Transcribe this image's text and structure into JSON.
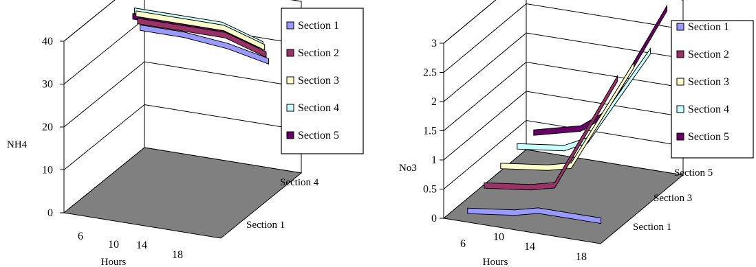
{
  "chart_data": [
    {
      "type": "line3d",
      "ylabel": "NH4",
      "xlabel": "Hours",
      "yticks": [
        "0",
        "10",
        "20",
        "30",
        "40"
      ],
      "ylim": [
        0,
        40
      ],
      "xticks": [
        "6",
        "10",
        "14",
        "18"
      ],
      "zticks": [
        "Section 1",
        "Section 4"
      ],
      "grid": true,
      "legend_position": "right",
      "x": [
        6,
        10,
        14,
        18
      ],
      "series": [
        {
          "name": "Section 1",
          "color": "#9999ff",
          "values": [
            33,
            33,
            32,
            30
          ]
        },
        {
          "name": "Section 2",
          "color": "#993366",
          "values": [
            35,
            35,
            35,
            32
          ]
        },
        {
          "name": "Section 3",
          "color": "#ffffcc",
          "values": [
            37,
            37,
            37,
            34
          ]
        },
        {
          "name": "Section 4",
          "color": "#ccffff",
          "values": [
            38,
            38,
            38,
            35
          ]
        },
        {
          "name": "Section 5",
          "color": "#660066",
          "values": [
            37,
            37,
            37,
            35
          ]
        }
      ]
    },
    {
      "type": "line3d",
      "ylabel": "No3",
      "xlabel": "Hours",
      "yticks": [
        "0",
        "0.5",
        "1",
        "1.5",
        "2",
        "2.5",
        "3"
      ],
      "ylim": [
        0,
        3
      ],
      "xticks": [
        "6",
        "10",
        "14",
        "18"
      ],
      "zticks": [
        "Section 1",
        "Section 3",
        "Section 5"
      ],
      "grid": true,
      "legend_position": "right",
      "x": [
        6,
        10,
        14,
        18
      ],
      "series": [
        {
          "name": "Section 1",
          "color": "#9999ff",
          "values": [
            0.1,
            0.2,
            0.3,
            0.3
          ]
        },
        {
          "name": "Section 2",
          "color": "#993366",
          "values": [
            0.3,
            0.4,
            0.5,
            2.5
          ]
        },
        {
          "name": "Section 3",
          "color": "#ffffcc",
          "values": [
            0.4,
            0.5,
            0.6,
            2.5
          ]
        },
        {
          "name": "Section 4",
          "color": "#ccffff",
          "values": [
            0.5,
            0.6,
            0.8,
            2.5
          ]
        },
        {
          "name": "Section 5",
          "color": "#660066",
          "values": [
            0.5,
            0.7,
            1.0,
            3.0
          ]
        }
      ]
    }
  ]
}
